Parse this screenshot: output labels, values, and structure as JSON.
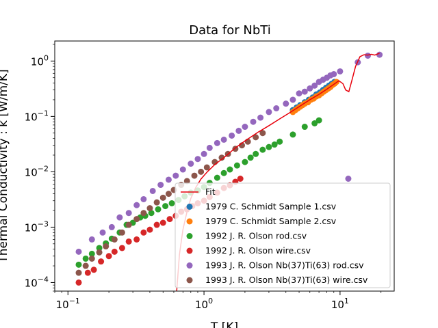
{
  "chart_data": {
    "type": "scatter",
    "title": "Data for NbTi",
    "xlabel": "T [K]",
    "ylabel": "Thermal Conductivity : k [W/m/K]",
    "xscale": "log",
    "yscale": "log",
    "xlim": [
      0.08,
      25
    ],
    "ylim": [
      7e-05,
      2.3
    ],
    "grid": false,
    "legend_position": "lower-right",
    "x_tick_labels": [
      {
        "value": 0.1,
        "base": "10",
        "exp": "−1"
      },
      {
        "value": 1,
        "base": "10",
        "exp": "0"
      },
      {
        "value": 10,
        "base": "10",
        "exp": "1"
      }
    ],
    "y_tick_labels": [
      {
        "value": 0.0001,
        "base": "10",
        "exp": "−4"
      },
      {
        "value": 0.001,
        "base": "10",
        "exp": "−3"
      },
      {
        "value": 0.01,
        "base": "10",
        "exp": "−2"
      },
      {
        "value": 0.1,
        "base": "10",
        "exp": "−1"
      },
      {
        "value": 1,
        "base": "10",
        "exp": "0"
      }
    ],
    "fit": {
      "name": "Fit",
      "color": "#e8000b",
      "x": [
        0.63,
        0.66,
        0.7,
        0.75,
        0.8,
        0.87,
        0.95,
        1.05,
        1.2,
        1.4,
        1.7,
        2.0,
        2.5,
        3.0,
        3.6,
        4.3,
        5.0,
        6.0,
        7.0,
        8.0,
        9.0,
        9.8,
        10.5,
        11.0,
        11.6,
        12.2,
        13.0,
        14.0,
        15.0,
        16.0,
        17.0,
        18.0,
        19.5
      ],
      "y": [
        7e-05,
        0.00032,
        0.0009,
        0.0019,
        0.0033,
        0.0052,
        0.0074,
        0.0098,
        0.0135,
        0.018,
        0.027,
        0.036,
        0.052,
        0.068,
        0.09,
        0.118,
        0.15,
        0.2,
        0.25,
        0.31,
        0.38,
        0.44,
        0.39,
        0.3,
        0.28,
        0.44,
        0.8,
        1.2,
        1.3,
        1.28,
        1.32,
        1.28,
        1.38
      ]
    },
    "series": [
      {
        "name": "1979 C. Schmidt Sample 1.csv",
        "color": "#1f77b4",
        "x": [
          4.5,
          4.8,
          5.1,
          5.5,
          5.9,
          6.3,
          6.7,
          7.1,
          7.5,
          7.9,
          8.3,
          8.7,
          9.1
        ],
        "y": [
          0.13,
          0.145,
          0.16,
          0.18,
          0.2,
          0.22,
          0.25,
          0.27,
          0.3,
          0.33,
          0.36,
          0.39,
          0.42
        ]
      },
      {
        "name": "1979 C. Schmidt Sample 2.csv",
        "color": "#ff7f0e",
        "x": [
          4.5,
          4.7,
          4.9,
          5.1,
          5.3,
          5.5,
          5.8,
          6.1,
          6.4,
          6.7,
          7.0,
          7.3,
          7.6,
          7.9,
          8.2,
          8.5,
          8.8,
          9.1,
          9.4
        ],
        "y": [
          0.12,
          0.13,
          0.14,
          0.15,
          0.16,
          0.17,
          0.18,
          0.2,
          0.21,
          0.23,
          0.24,
          0.26,
          0.28,
          0.3,
          0.32,
          0.34,
          0.37,
          0.39,
          0.42
        ]
      },
      {
        "name": "1992 J. R. Olson rod.csv",
        "color": "#2ca02c",
        "x": [
          0.12,
          0.135,
          0.15,
          0.17,
          0.19,
          0.21,
          0.24,
          0.27,
          0.3,
          0.34,
          0.37,
          0.41,
          0.46,
          0.52,
          0.58,
          0.65,
          0.72,
          0.8,
          0.9,
          1.0,
          1.1,
          1.25,
          1.4,
          1.55,
          1.75,
          2.0,
          2.2,
          2.4,
          2.7,
          3.0,
          3.3,
          3.6,
          4.5,
          5.5,
          6.5,
          7.0
        ],
        "y": [
          0.00021,
          0.00027,
          0.00033,
          0.00042,
          0.00051,
          0.00062,
          0.0008,
          0.0011,
          0.0012,
          0.0015,
          0.0016,
          0.0018,
          0.0021,
          0.0024,
          0.0027,
          0.0031,
          0.0036,
          0.0042,
          0.0046,
          0.0053,
          0.0063,
          0.0078,
          0.0095,
          0.011,
          0.013,
          0.015,
          0.018,
          0.021,
          0.025,
          0.028,
          0.031,
          0.035,
          0.047,
          0.065,
          0.075,
          0.085
        ]
      },
      {
        "name": "1992 J. R. Olson wire.csv",
        "color": "#d62728",
        "x": [
          0.12,
          0.14,
          0.155,
          0.175,
          0.2,
          0.22,
          0.25,
          0.28,
          0.32,
          0.36,
          0.4,
          0.45,
          0.5,
          0.56,
          0.62,
          0.68,
          0.75,
          0.82,
          0.9,
          1.0,
          1.1,
          1.25,
          1.4,
          1.55,
          1.7,
          1.85
        ],
        "y": [
          0.0001,
          0.00015,
          0.00017,
          0.00024,
          0.0003,
          0.00036,
          0.00042,
          0.00055,
          0.0006,
          0.0008,
          0.0009,
          0.0011,
          0.0012,
          0.0014,
          0.0016,
          0.0019,
          0.0021,
          0.0024,
          0.0027,
          0.003,
          0.0035,
          0.0042,
          0.0051,
          0.0057,
          0.0066,
          0.0075
        ]
      },
      {
        "name": "1993 J. R. Olson Nb(37)Ti(63) rod.csv",
        "color": "#9467bd",
        "x": [
          0.12,
          0.15,
          0.18,
          0.21,
          0.24,
          0.28,
          0.32,
          0.36,
          0.42,
          0.48,
          0.55,
          0.62,
          0.7,
          0.8,
          0.9,
          1.0,
          1.1,
          1.25,
          1.4,
          1.6,
          1.8,
          2.0,
          2.3,
          2.6,
          3.0,
          3.4,
          4.0,
          4.5,
          5.0,
          5.5,
          6.0,
          6.5,
          7.0,
          7.5,
          8.0,
          8.5,
          9.0,
          10.0,
          11.5,
          13.5,
          16.0,
          19.5
        ],
        "y": [
          0.00036,
          0.0006,
          0.0008,
          0.001,
          0.0015,
          0.0018,
          0.0025,
          0.0032,
          0.0045,
          0.0058,
          0.0072,
          0.0085,
          0.011,
          0.014,
          0.017,
          0.021,
          0.027,
          0.033,
          0.038,
          0.045,
          0.055,
          0.065,
          0.08,
          0.095,
          0.12,
          0.14,
          0.17,
          0.2,
          0.26,
          0.28,
          0.32,
          0.36,
          0.42,
          0.46,
          0.5,
          0.55,
          0.58,
          0.65,
          0.0075,
          0.95,
          1.25,
          1.3
        ]
      },
      {
        "name": "1993 J. R. Olson Nb(37)Ti(63) wire.csv",
        "color": "#8c564b",
        "x": [
          0.12,
          0.135,
          0.15,
          0.17,
          0.19,
          0.22,
          0.25,
          0.28,
          0.32,
          0.36,
          0.4,
          0.45,
          0.5,
          0.55,
          0.6,
          0.68,
          0.75,
          0.85,
          0.95,
          1.05,
          1.2,
          1.35,
          1.5,
          1.7,
          1.9,
          2.1,
          2.4,
          2.7
        ],
        "y": [
          0.00015,
          0.0002,
          0.00027,
          0.00035,
          0.00045,
          0.0006,
          0.0008,
          0.0011,
          0.0014,
          0.0018,
          0.0022,
          0.0028,
          0.0034,
          0.004,
          0.0047,
          0.0058,
          0.0068,
          0.0085,
          0.01,
          0.012,
          0.015,
          0.018,
          0.021,
          0.026,
          0.03,
          0.035,
          0.042,
          0.05
        ]
      }
    ]
  }
}
